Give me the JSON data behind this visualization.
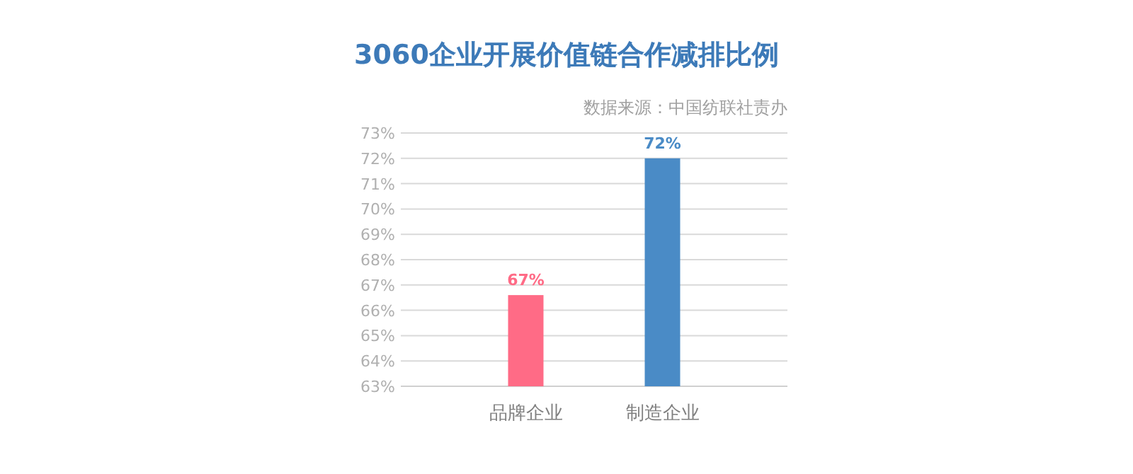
{
  "chart_data": {
    "type": "bar",
    "title": "3060企业开展价值链合作减排比例",
    "annotations": [
      "数据来源：中国纺联社责办"
    ],
    "categories": [
      "品牌企业",
      "制造企业"
    ],
    "values": [
      66.6,
      72
    ],
    "colors": [
      "#ff6b86",
      "#4a8bc6"
    ],
    "value_labels": [
      "67%",
      "72%"
    ],
    "ylim": [
      63,
      73
    ],
    "yticks": [
      {
        "value": 63,
        "label": "63%"
      },
      {
        "value": 64,
        "label": "64%"
      },
      {
        "value": 65,
        "label": "65%"
      },
      {
        "value": 66,
        "label": "66%"
      },
      {
        "value": 67,
        "label": "67%"
      },
      {
        "value": 68,
        "label": "68%"
      },
      {
        "value": 69,
        "label": "69%"
      },
      {
        "value": 70,
        "label": "70%"
      },
      {
        "value": 71,
        "label": "71%"
      },
      {
        "value": 72,
        "label": "72%"
      },
      {
        "value": 73,
        "label": "73%"
      }
    ],
    "grid": "y"
  }
}
